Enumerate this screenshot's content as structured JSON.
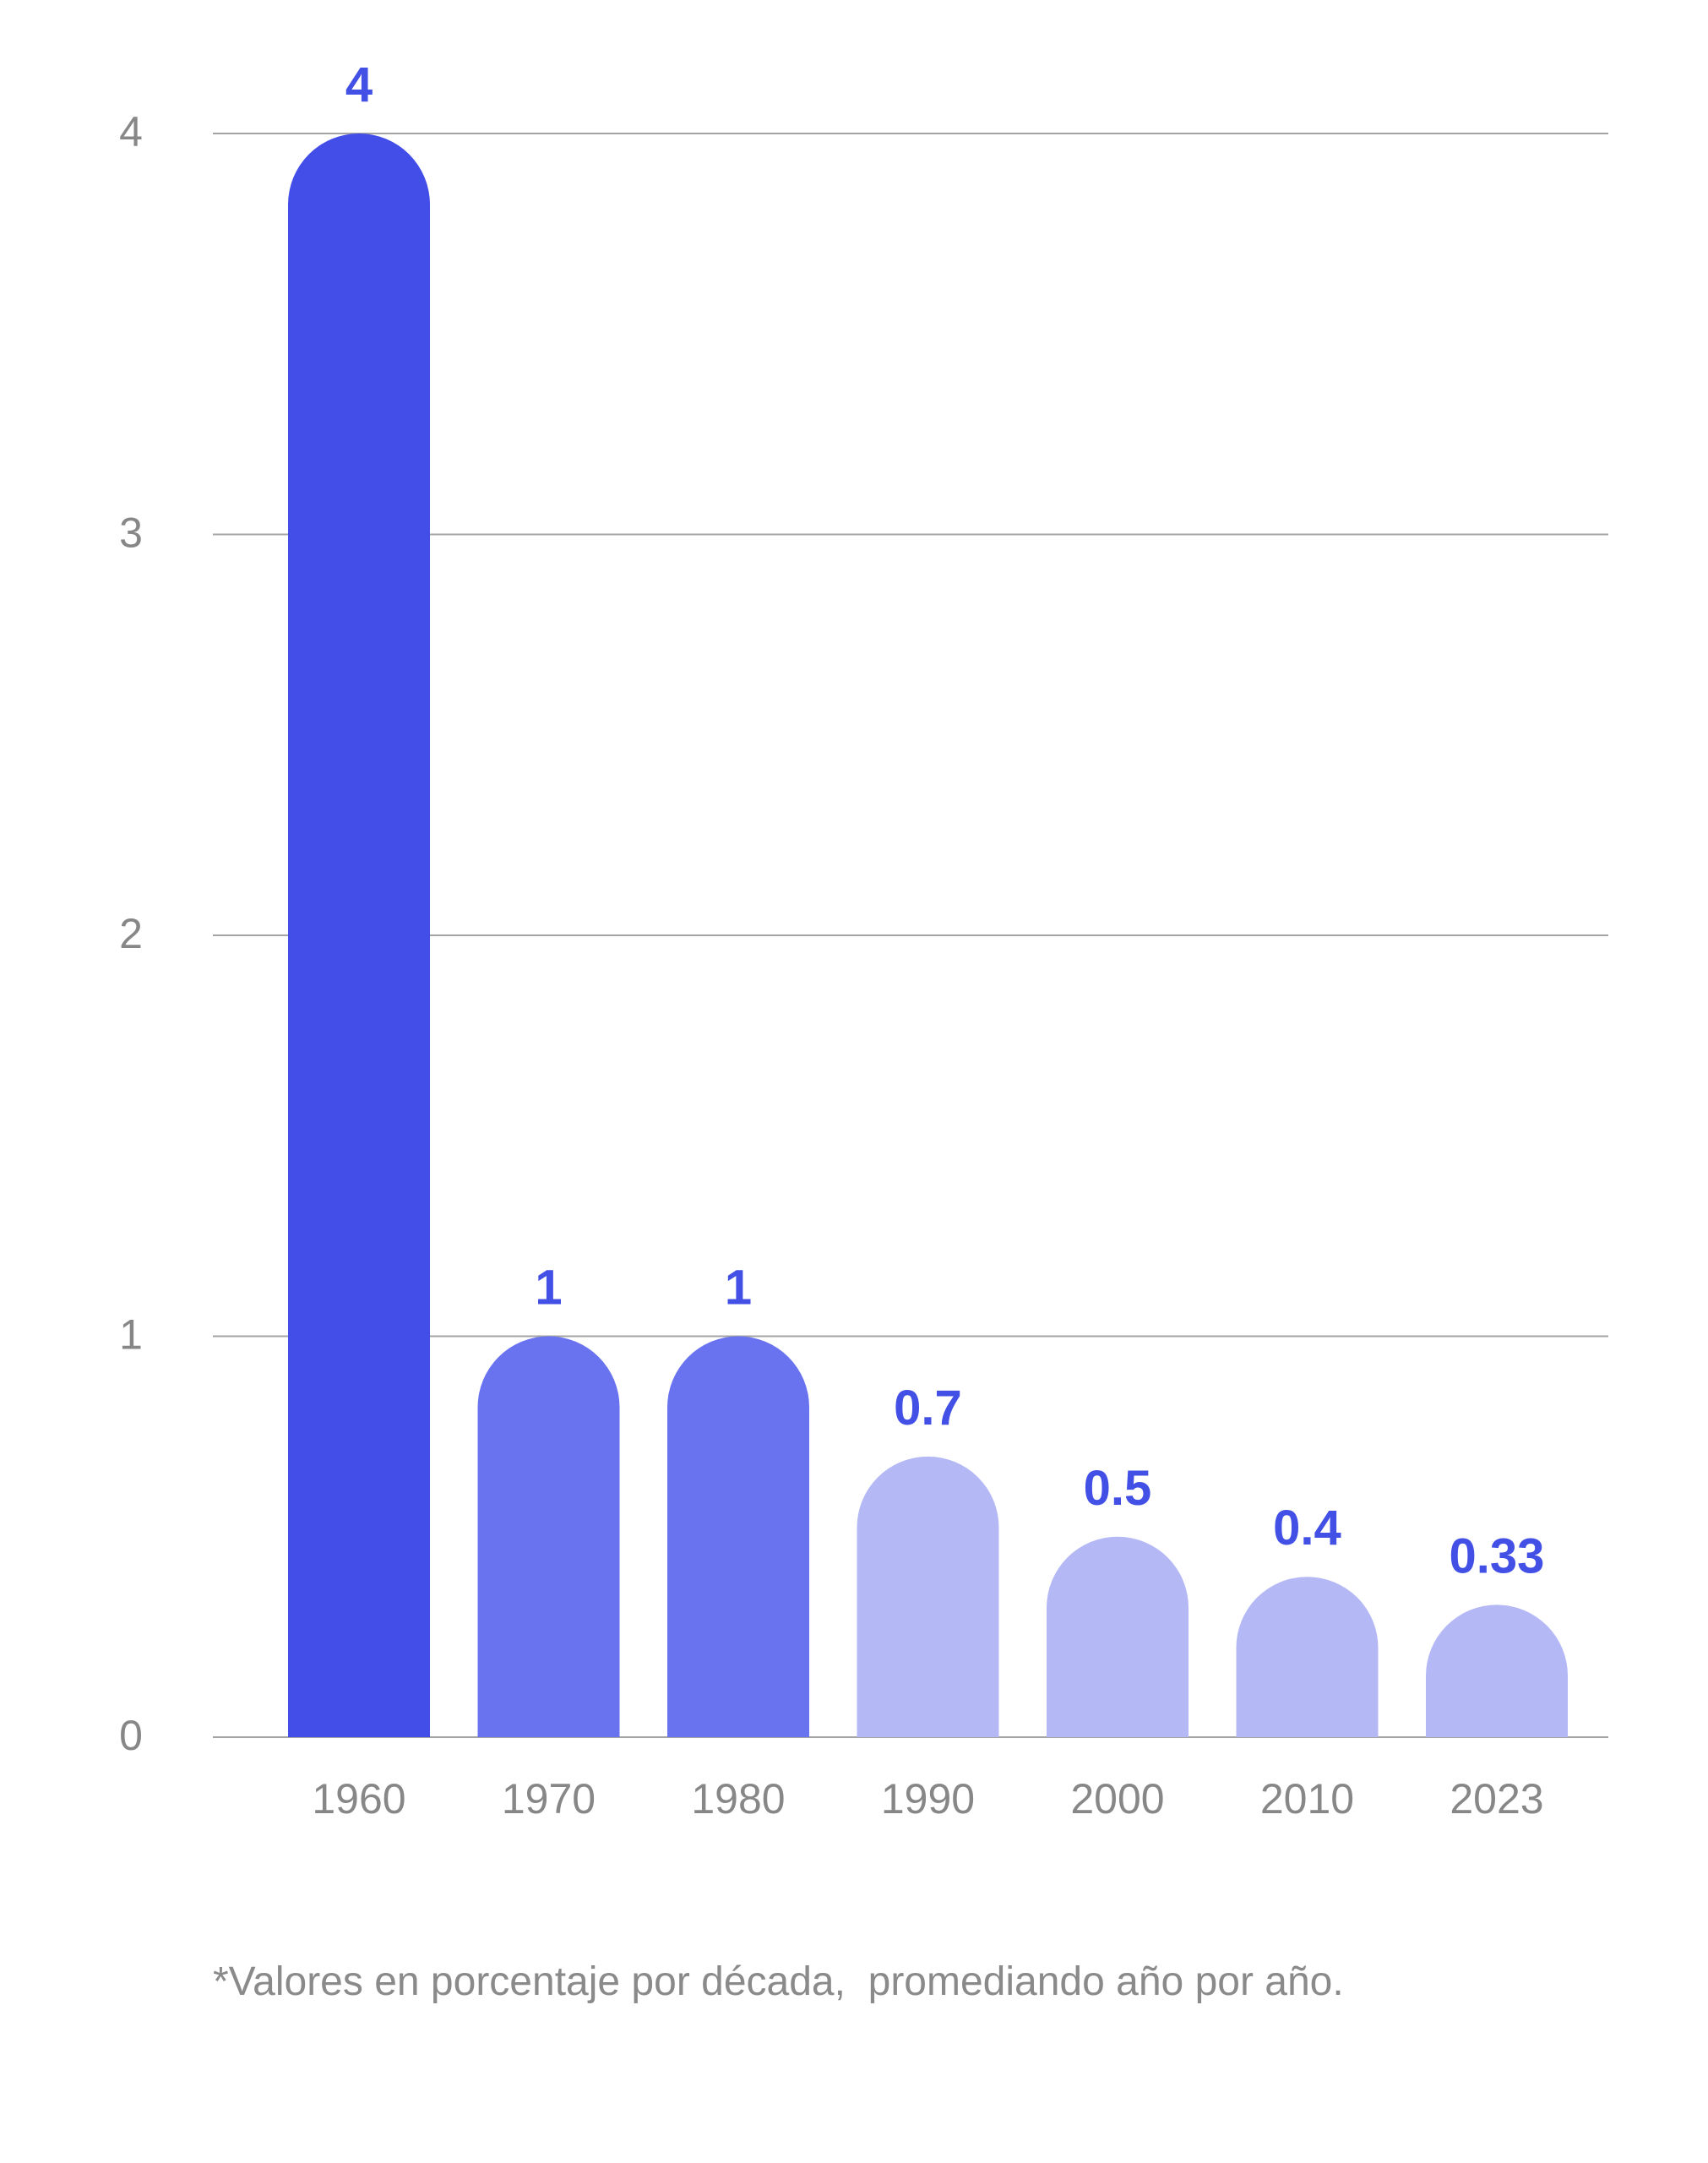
{
  "chart_data": {
    "type": "bar",
    "categories": [
      "1960",
      "1970",
      "1980",
      "1990",
      "2000",
      "2010",
      "2023"
    ],
    "values": [
      4,
      1,
      1,
      0.7,
      0.5,
      0.4,
      0.33
    ],
    "data_labels": [
      "4",
      "1",
      "1",
      "0.7",
      "0.5",
      "0.4",
      "0.33"
    ],
    "bar_colors": [
      "#434ee9",
      "#6a73ef",
      "#6a73ef",
      "#b4b9f6",
      "#b4b9f6",
      "#b4b9f6",
      "#b4b9f6"
    ],
    "label_color": "#4350e6",
    "y_ticks": [
      0,
      1,
      2,
      3,
      4
    ],
    "ylim": [
      0,
      4
    ],
    "grid": true,
    "legend": "none"
  },
  "footnote": "*Valores en porcentaje por década,  promediando año por año."
}
